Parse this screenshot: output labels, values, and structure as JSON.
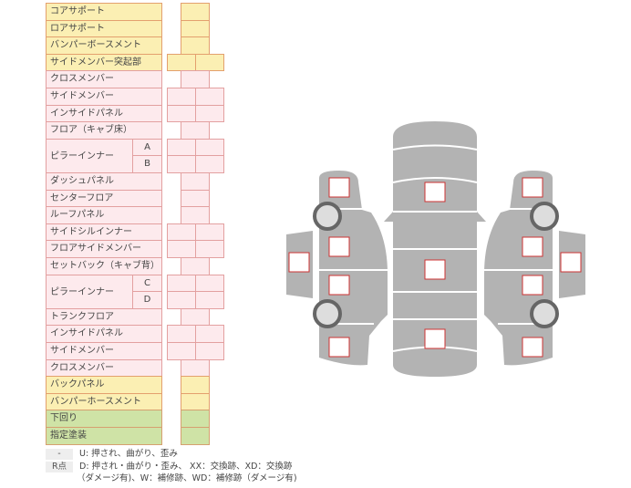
{
  "colors": {
    "yellow": "#fbefb3",
    "pink": "#fdeaed",
    "green": "#cfe3a6",
    "marker": "#cc3333",
    "body": "#b3b3b3"
  },
  "rows": [
    {
      "label": "コアサポート",
      "color": "y",
      "cells": 1
    },
    {
      "label": "ロアサポート",
      "color": "y",
      "cells": 1
    },
    {
      "label": "バンパーボースメント",
      "color": "y",
      "cells": 1
    },
    {
      "label": "サイドメンバー突起部",
      "color": "y",
      "cells": 2
    },
    {
      "label": "クロスメンバー",
      "color": "p",
      "cells": 1
    },
    {
      "label": "サイドメンバー",
      "color": "p",
      "cells": 2
    },
    {
      "label": "インサイドパネル",
      "color": "p",
      "cells": 2
    },
    {
      "label": "フロア（キャブ床）",
      "color": "p",
      "cells": 1
    },
    {
      "label": "ピラーインナー",
      "color": "p",
      "cells": 2,
      "sub": "A",
      "group_start": true
    },
    {
      "label": "",
      "color": "p",
      "cells": 2,
      "sub": "B"
    },
    {
      "label": "ダッシュパネル",
      "color": "p",
      "cells": 1
    },
    {
      "label": "センターフロア",
      "color": "p",
      "cells": 1
    },
    {
      "label": "ルーフパネル",
      "color": "p",
      "cells": 1
    },
    {
      "label": "サイドシルインナー",
      "color": "p",
      "cells": 2
    },
    {
      "label": "フロアサイドメンバー",
      "color": "p",
      "cells": 2
    },
    {
      "label": "セットバック（キャブ背）",
      "color": "p",
      "cells": 1
    },
    {
      "label": "ピラーインナー",
      "color": "p",
      "cells": 2,
      "sub": "C",
      "group_start": true
    },
    {
      "label": "",
      "color": "p",
      "cells": 2,
      "sub": "D"
    },
    {
      "label": "トランクフロア",
      "color": "p",
      "cells": 1
    },
    {
      "label": "インサイドパネル",
      "color": "p",
      "cells": 2
    },
    {
      "label": "サイドメンバー",
      "color": "p",
      "cells": 2
    },
    {
      "label": "クロスメンバー",
      "color": "p",
      "cells": 1
    },
    {
      "label": "バックパネル",
      "color": "y",
      "cells": 1
    },
    {
      "label": "バンパーホースメント",
      "color": "y",
      "cells": 1
    },
    {
      "label": "下回り",
      "color": "g",
      "cells": 1
    },
    {
      "label": "指定塗装",
      "color": "g",
      "cells": 1
    }
  ],
  "legend": {
    "key1": "-",
    "text1": "U: 押され、曲がり、歪み",
    "key2": "R点",
    "text2": "D: 押され・曲がり・歪み、 XX：交換跡、XD：交換跡",
    "text3": "（ダメージ有)、W：補修跡、WD：補修跡（ダメージ有)"
  }
}
